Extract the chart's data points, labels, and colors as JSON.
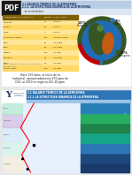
{
  "bg_color": "#e8e8e8",
  "top_slide_bg": "#ffffff",
  "pdf_bg": "#1a1a1a",
  "pdf_label": "PDF",
  "header_blue_light": "#b8cce4",
  "header_blue_dark": "#1f3864",
  "header_text1": "2.1 BALANCE TERMICO DE LA ATMOSFERA",
  "header_text2": "2.1.1. LA ESTRUCTURA DINAMICA DE LA ATMOSFERA",
  "table_header_bg": "#7f6000",
  "table_row1": "#ffe699",
  "table_row2": "#ffd966",
  "table_text_color": "#1a1a1a",
  "globe_blue": "#1f6bb5",
  "globe_green": "#375623",
  "globe_orange": "#c55a11",
  "globe_light_green": "#548235",
  "pie_red": "#c00000",
  "pie_green": "#375623",
  "pie_blue_small": "#2e75b6",
  "pie_label_21": "21%",
  "pie_label_1": "1%",
  "pie_label_78": "78%",
  "pie_cat_21": "Oxigeno",
  "pie_cat_1": "Ozono",
  "pie_cat_78": "Nitrogeno",
  "ind_text_line1": "Hace 250 años, al inicio de la",
  "ind_text_bold": "Revolución",
  "ind_text_line2": "Industrial, aproximadamente 250 ppm de",
  "ind_text_line3": "CO2; al 2019 se registra 415.26 ppm",
  "bot_bg": "#dce6f1",
  "bot_white_area": "#ffffff",
  "bot_header_blue": "#2e75b6",
  "bot_header_text1": "2.1 BALANCE TERMICO DE LA ATMOSFERA",
  "bot_header_text2": "2.1.1 LA ESTRUCTURA DINAMICA DE LA ATMOSFERA",
  "bot_univ_text": "Universidad\nAndina\ndel Cusco",
  "bot_logo_color": "#1f3864",
  "bot_diagram_bg": "#c9daf8",
  "bot_right_panel_top": "#1f497d",
  "bot_right_panel_bot": "#17375e",
  "atmo_curve_color": "#ff0000",
  "atmo_layer_colors": [
    "#dae3f3",
    "#c9daf8",
    "#bdd7ee",
    "#9dc3e6",
    "#2e75b6"
  ],
  "separator_color": "#cccccc"
}
